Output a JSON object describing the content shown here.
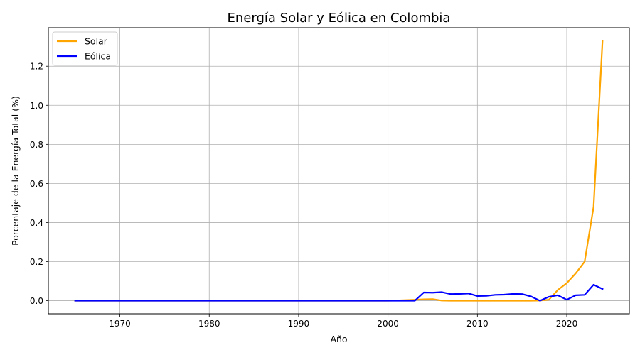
{
  "chart_data": {
    "type": "line",
    "title": "Energía Solar y Eólica en Colombia",
    "xlabel": "Año",
    "ylabel": "Porcentaje de la Energía Total (%)",
    "xlim": [
      1962,
      2027
    ],
    "ylim": [
      -0.067,
      1.397
    ],
    "xticks": [
      1970,
      1980,
      1990,
      2000,
      2010,
      2020
    ],
    "yticks": [
      0.0,
      0.2,
      0.4,
      0.6,
      0.8,
      1.0,
      1.2
    ],
    "ytick_labels": [
      "0.0",
      "0.2",
      "0.4",
      "0.6",
      "0.8",
      "1.0",
      "1.2"
    ],
    "grid": true,
    "legend_position": "upper left",
    "x": [
      1965,
      1966,
      1967,
      1968,
      1969,
      1970,
      1971,
      1972,
      1973,
      1974,
      1975,
      1976,
      1977,
      1978,
      1979,
      1980,
      1981,
      1982,
      1983,
      1984,
      1985,
      1986,
      1987,
      1988,
      1989,
      1990,
      1991,
      1992,
      1993,
      1994,
      1995,
      1996,
      1997,
      1998,
      1999,
      2000,
      2001,
      2002,
      2003,
      2004,
      2005,
      2006,
      2007,
      2008,
      2009,
      2010,
      2011,
      2012,
      2013,
      2014,
      2015,
      2016,
      2017,
      2018,
      2019,
      2020,
      2021,
      2022,
      2023,
      2024
    ],
    "series": [
      {
        "name": "Solar",
        "color": "#ffa500",
        "values": [
          0,
          0,
          0,
          0,
          0,
          0,
          0,
          0,
          0,
          0,
          0,
          0,
          0,
          0,
          0,
          0,
          0,
          0,
          0,
          0,
          0,
          0,
          0,
          0,
          0,
          0,
          0,
          0,
          0,
          0,
          0,
          0,
          0,
          0,
          0,
          0,
          0.001,
          0.003,
          0.005,
          0.007,
          0.008,
          0.001,
          0,
          0,
          0,
          0,
          0,
          0,
          0,
          0,
          0,
          0,
          0.001,
          0.005,
          0.055,
          0.09,
          0.14,
          0.2,
          0.48,
          1.33
        ]
      },
      {
        "name": "Eólica",
        "color": "#0000ff",
        "values": [
          0,
          0,
          0,
          0,
          0,
          0,
          0,
          0,
          0,
          0,
          0,
          0,
          0,
          0,
          0,
          0,
          0,
          0,
          0,
          0,
          0,
          0,
          0,
          0,
          0,
          0,
          0,
          0,
          0,
          0,
          0,
          0,
          0,
          0,
          0,
          0,
          0,
          0,
          0,
          0.042,
          0.041,
          0.044,
          0.034,
          0.035,
          0.037,
          0.024,
          0.025,
          0.03,
          0.031,
          0.035,
          0.034,
          0.022,
          0,
          0.02,
          0.028,
          0.005,
          0.028,
          0.03,
          0.082,
          0.06
        ]
      }
    ]
  }
}
